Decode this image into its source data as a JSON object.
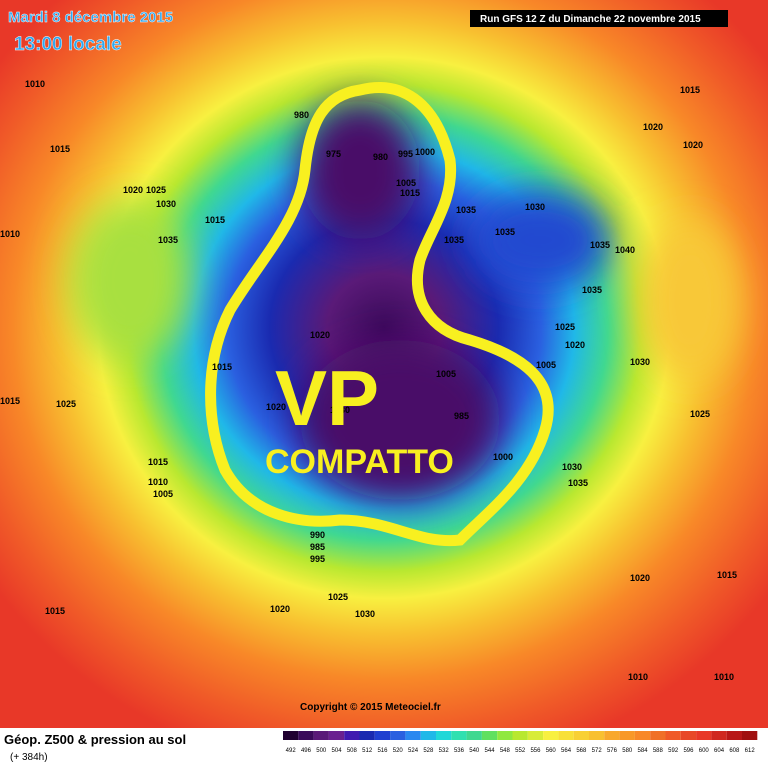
{
  "header": {
    "date": "Mardi 8 décembre 2015",
    "time": "13:00 locale",
    "run": "Run GFS 12 Z du Dimanche 22 novembre 2015"
  },
  "annotation": {
    "main": "VP",
    "sub": "COMPATTO"
  },
  "copyright": "Copyright © 2015 Meteociel.fr",
  "footer": {
    "title": "Géop. Z500 & pression au sol",
    "lead": "(+ 384h)"
  },
  "legend": {
    "labels": [
      492,
      496,
      500,
      504,
      508,
      512,
      516,
      520,
      524,
      528,
      532,
      536,
      540,
      544,
      548,
      552,
      556,
      560,
      564,
      568,
      572,
      576,
      580,
      584,
      588,
      592,
      596,
      600,
      604,
      608,
      612
    ]
  },
  "pressure_labels": [
    1010,
    1015,
    1010,
    1015,
    1025,
    1015,
    1010,
    1005,
    1020,
    1025,
    1030,
    1035,
    980,
    975,
    980,
    995,
    1000,
    1005,
    1015,
    1035,
    1030,
    1035,
    1035,
    1035,
    1040,
    1035,
    1025,
    1020,
    1005,
    1030,
    1025,
    1020,
    1015,
    1020,
    1020,
    1020,
    1030,
    1005,
    985,
    1000,
    1030,
    1035,
    990,
    985,
    995,
    1025,
    1020,
    1030,
    1015,
    1020,
    1015,
    1010,
    1010,
    1015,
    1015
  ]
}
